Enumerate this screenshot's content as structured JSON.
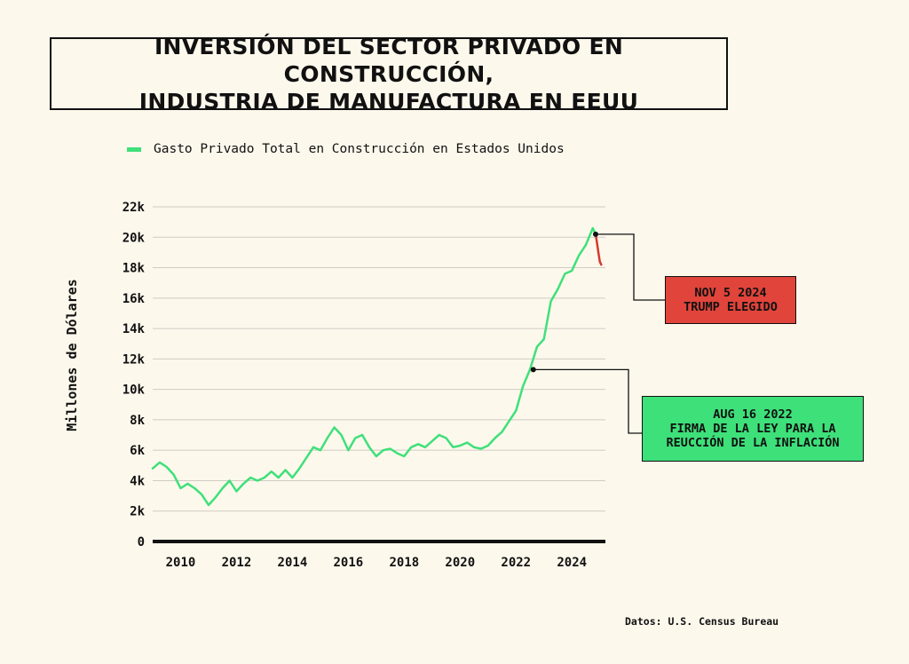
{
  "title": {
    "line1": "INVERSIÓN DEL SECTOR PRIVADO EN CONSTRUCCIÓN,",
    "line2": "INDUSTRIA DE MANUFACTURA EN EEUU"
  },
  "legend": {
    "label": "Gasto Privado Total en Construcción en Estados Unidos"
  },
  "source": "Datos: U.S. Census Bureau",
  "colors": {
    "series": "#3fe07a",
    "post_election": "#d33a2c",
    "red_box": "#e0443a",
    "green_box": "#3ee07a"
  },
  "annotations": [
    {
      "line1": "NOV 5 2024",
      "line2": "TRUMP ELEGIDO",
      "date": 2024.85,
      "value": 20200
    },
    {
      "line1": "AUG 16 2022",
      "line2": "FIRMA DE LA LEY PARA LA",
      "line3": "REUCCIÓN DE LA INFLACIÓN",
      "date": 2022.62,
      "value": 11300
    }
  ],
  "chart_data": {
    "type": "line",
    "title": "INVERSIÓN DEL SECTOR PRIVADO EN CONSTRUCCIÓN, INDUSTRIA DE MANUFACTURA EN EEUU",
    "xlabel": "",
    "ylabel": "Millones de Dólares",
    "xlim": [
      2009.0,
      2025.2
    ],
    "ylim": [
      0,
      22000
    ],
    "x_ticks": [
      2010,
      2012,
      2014,
      2016,
      2018,
      2020,
      2022,
      2024
    ],
    "x_tick_labels": [
      "2010",
      "2012",
      "2014",
      "2016",
      "2018",
      "2020",
      "2022",
      "2024"
    ],
    "y_ticks": [
      0,
      2000,
      4000,
      6000,
      8000,
      10000,
      12000,
      14000,
      16000,
      18000,
      20000,
      22000
    ],
    "y_tick_labels": [
      "0",
      "2k",
      "4k",
      "6k",
      "8k",
      "10k",
      "12k",
      "14k",
      "16k",
      "18k",
      "20k",
      "22k"
    ],
    "grid": true,
    "legend_position": "top-left",
    "series": [
      {
        "name": "Gasto Privado Total en Construcción en Estados Unidos",
        "x": [
          2009.0,
          2009.25,
          2009.5,
          2009.75,
          2010.0,
          2010.25,
          2010.5,
          2010.75,
          2011.0,
          2011.25,
          2011.5,
          2011.75,
          2012.0,
          2012.25,
          2012.5,
          2012.75,
          2013.0,
          2013.25,
          2013.5,
          2013.75,
          2014.0,
          2014.25,
          2014.5,
          2014.75,
          2015.0,
          2015.25,
          2015.5,
          2015.75,
          2016.0,
          2016.25,
          2016.5,
          2016.75,
          2017.0,
          2017.25,
          2017.5,
          2017.75,
          2018.0,
          2018.25,
          2018.5,
          2018.75,
          2019.0,
          2019.25,
          2019.5,
          2019.75,
          2020.0,
          2020.25,
          2020.5,
          2020.75,
          2021.0,
          2021.25,
          2021.5,
          2021.75,
          2022.0,
          2022.25,
          2022.5,
          2022.75,
          2023.0,
          2023.25,
          2023.5,
          2023.75,
          2024.0,
          2024.25,
          2024.5,
          2024.75,
          2024.85
        ],
        "y": [
          4800,
          5200,
          4900,
          4400,
          3500,
          3800,
          3500,
          3100,
          2400,
          2900,
          3500,
          4000,
          3300,
          3800,
          4200,
          4000,
          4200,
          4600,
          4200,
          4700,
          4200,
          4800,
          5500,
          6200,
          6000,
          6800,
          7500,
          7000,
          6000,
          6800,
          7000,
          6200,
          5600,
          6000,
          6100,
          5800,
          5600,
          6200,
          6400,
          6200,
          6600,
          7000,
          6800,
          6200,
          6300,
          6500,
          6200,
          6100,
          6300,
          6800,
          7200,
          7900,
          8600,
          10200,
          11300,
          12800,
          13300,
          15800,
          16600,
          17600,
          17800,
          18800,
          19500,
          20600,
          20200
        ]
      },
      {
        "name": "",
        "x": [
          2024.85,
          2024.9,
          2024.95,
          2025.0,
          2025.05
        ],
        "y": [
          20200,
          19600,
          19000,
          18400,
          18200
        ]
      }
    ]
  }
}
